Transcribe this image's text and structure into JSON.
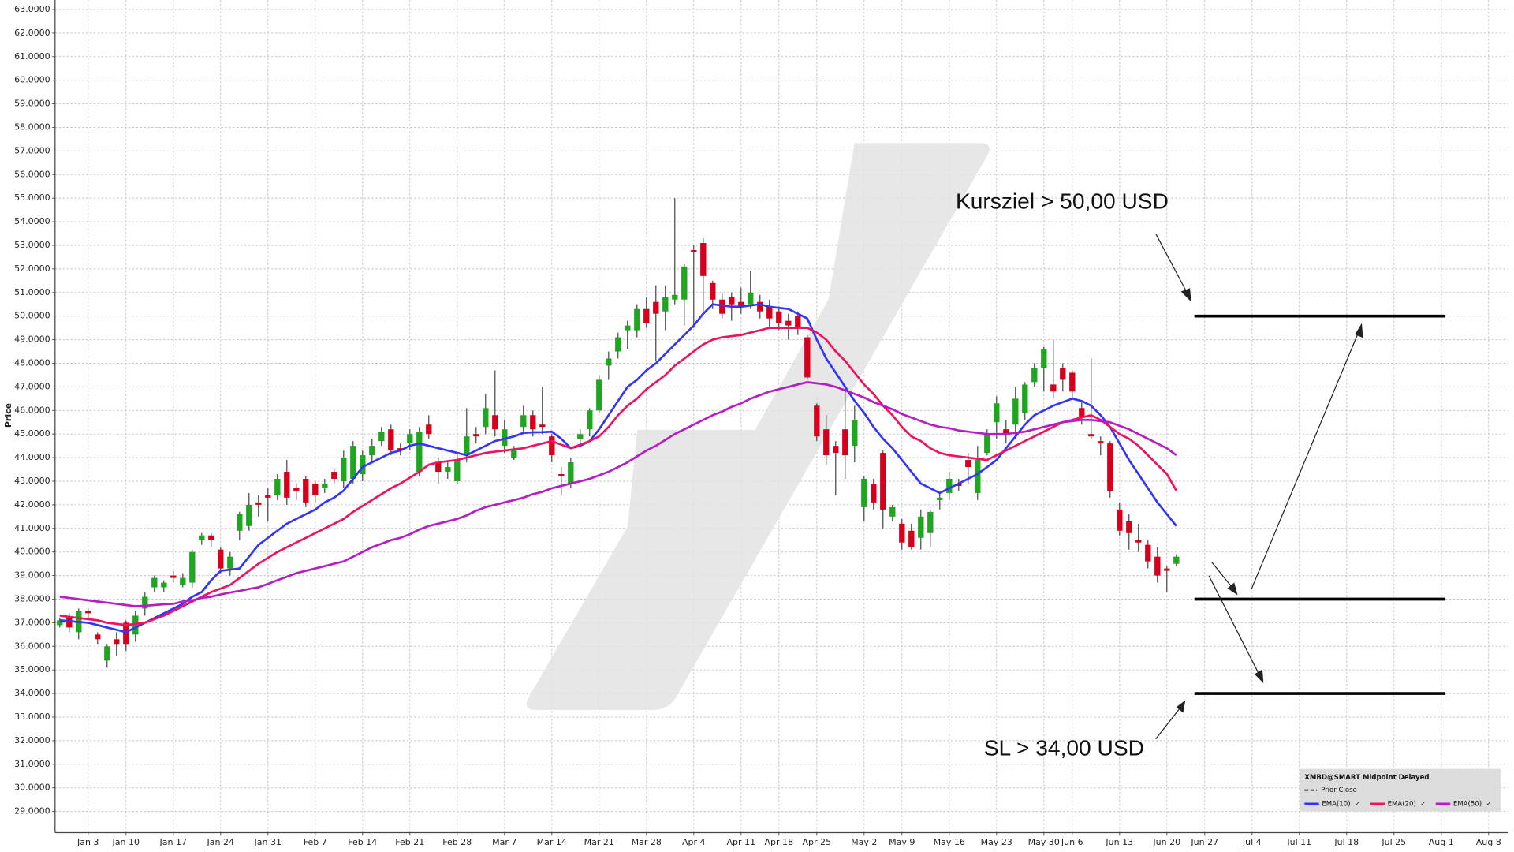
{
  "chart_data": {
    "type": "candlestick",
    "ylabel": "Price",
    "categories": [
      null,
      null,
      null,
      "Jan 3",
      null,
      null,
      null,
      "Jan 10",
      null,
      null,
      null,
      null,
      "Jan 17",
      null,
      null,
      null,
      null,
      "Jan 24",
      null,
      null,
      null,
      null,
      "Jan 31",
      null,
      null,
      null,
      null,
      "Feb 7",
      null,
      null,
      null,
      null,
      "Feb 14",
      null,
      null,
      null,
      null,
      "Feb 21",
      null,
      null,
      null,
      null,
      "Feb 28",
      null,
      null,
      null,
      null,
      "Mar 7",
      null,
      null,
      null,
      null,
      "Mar 14",
      null,
      null,
      null,
      null,
      "Mar 21",
      null,
      null,
      null,
      null,
      "Mar 28",
      null,
      null,
      null,
      null,
      "Apr 4",
      null,
      null,
      null,
      null,
      "Apr 11",
      null,
      null,
      null,
      "Apr 18",
      null,
      null,
      null,
      "Apr 25",
      null,
      null,
      null,
      null,
      "May 2",
      null,
      null,
      null,
      "May 9",
      null,
      null,
      null,
      null,
      "May 16",
      null,
      null,
      null,
      null,
      "May 23",
      null,
      null,
      null,
      null,
      "May 30",
      null,
      null,
      "Jun 6",
      null,
      null,
      null,
      null,
      "Jun 13",
      null,
      null,
      null,
      null,
      "Jun 20",
      null,
      null,
      null,
      "Jun 27",
      null,
      null,
      null,
      null,
      "Jul 4",
      null,
      null,
      null,
      null,
      "Jul 11",
      null,
      null,
      null,
      null,
      "Jul 18",
      null,
      null,
      null,
      null,
      "Jul 25",
      null,
      null,
      null,
      null,
      "Aug 1",
      null,
      null,
      null,
      null,
      "Aug 8"
    ],
    "open": [
      36.9,
      37.2,
      36.6,
      37.5,
      36.5,
      35.4,
      36.3,
      37.0,
      36.5,
      37.6,
      38.5,
      38.5,
      39.0,
      38.6,
      38.7,
      40.5,
      40.7,
      40.1,
      39.3,
      40.9,
      41.1,
      42.1,
      42.4,
      42.4,
      43.4,
      42.7,
      43.1,
      42.9,
      42.7,
      43.4,
      43.0,
      43.1,
      43.3,
      44.1,
      44.7,
      45.2,
      44.4,
      44.6,
      43.4,
      45.4,
      43.8,
      43.4,
      43.0,
      44.1,
      45.0,
      45.3,
      45.8,
      44.5,
      44.0,
      45.3,
      45.8,
      45.4,
      44.9,
      43.3,
      42.9,
      44.8,
      45.2,
      46.0,
      47.9,
      48.5,
      49.4,
      49.4,
      50.3,
      50.6,
      50.2,
      50.7,
      50.7,
      52.8,
      53.1,
      51.4,
      50.7,
      50.8,
      50.6,
      50.5,
      50.6,
      50.4,
      50.2,
      49.8,
      50.0,
      49.1,
      46.2,
      45.2,
      44.5,
      45.2,
      44.5,
      41.9,
      42.9,
      44.2,
      41.5,
      41.2,
      40.9,
      40.6,
      40.8,
      42.2,
      42.5,
      42.9,
      43.9,
      42.5,
      44.2,
      45.5,
      45.2,
      45.4,
      45.9,
      47.2,
      47.8,
      47.1,
      47.8,
      47.6,
      46.1,
      45.0,
      44.7,
      44.6,
      41.8,
      41.3,
      40.5,
      40.3,
      39.8,
      39.3,
      39.5,
      null,
      null,
      null,
      null,
      null,
      null,
      null,
      null,
      null,
      null,
      null,
      null,
      null,
      null,
      null,
      null,
      null,
      null,
      null,
      null,
      null,
      null,
      null,
      null,
      null,
      null,
      null,
      null,
      null,
      null,
      null,
      null,
      null
    ],
    "high": [
      37.2,
      37.4,
      37.6,
      37.6,
      36.6,
      36.1,
      36.6,
      37.1,
      37.5,
      38.3,
      39.0,
      38.8,
      39.2,
      39.1,
      40.1,
      40.8,
      40.8,
      40.2,
      40.0,
      41.7,
      42.5,
      42.4,
      42.7,
      43.3,
      43.9,
      42.9,
      43.2,
      43.0,
      43.1,
      43.5,
      44.3,
      44.7,
      44.3,
      44.8,
      45.3,
      45.4,
      44.6,
      45.2,
      45.3,
      45.8,
      44.0,
      43.8,
      44.2,
      46.1,
      45.3,
      46.7,
      47.7,
      45.6,
      44.5,
      46.2,
      46.0,
      47.0,
      45.0,
      43.6,
      44.0,
      45.2,
      46.1,
      47.5,
      48.5,
      49.3,
      49.8,
      50.5,
      50.8,
      51.3,
      51.3,
      55.0,
      52.2,
      53.0,
      53.3,
      51.5,
      51.0,
      51.0,
      51.2,
      51.9,
      50.9,
      50.7,
      50.4,
      50.1,
      50.2,
      49.2,
      46.3,
      45.8,
      44.7,
      46.8,
      46.2,
      43.2,
      43.1,
      44.3,
      42.0,
      41.4,
      41.2,
      41.8,
      41.8,
      42.5,
      43.4,
      43.1,
      44.2,
      44.5,
      45.2,
      46.6,
      45.6,
      47.0,
      47.2,
      48.0,
      48.7,
      49.0,
      48.0,
      47.7,
      46.4,
      48.2,
      44.9,
      44.7,
      42.1,
      41.6,
      41.2,
      40.5,
      40.2,
      39.4,
      39.9,
      null,
      null,
      null,
      null,
      null,
      null,
      null,
      null,
      null,
      null,
      null,
      null,
      null,
      null,
      null,
      null,
      null,
      null,
      null,
      null,
      null,
      null,
      null,
      null,
      null,
      null,
      null,
      null,
      null,
      null,
      null,
      null,
      null
    ],
    "low": [
      36.8,
      36.6,
      36.3,
      37.2,
      36.1,
      35.1,
      35.6,
      35.8,
      36.2,
      37.3,
      38.3,
      38.3,
      38.7,
      38.5,
      38.5,
      40.3,
      40.2,
      39.1,
      39.0,
      40.5,
      40.9,
      41.5,
      41.3,
      42.2,
      42.0,
      42.2,
      41.9,
      42.1,
      42.5,
      42.9,
      42.7,
      42.9,
      43.0,
      43.8,
      44.5,
      44.1,
      44.1,
      44.3,
      43.2,
      44.8,
      42.9,
      43.1,
      42.9,
      43.8,
      44.6,
      45.0,
      44.9,
      44.2,
      43.9,
      45.0,
      44.9,
      45.0,
      43.8,
      42.4,
      42.7,
      44.6,
      44.9,
      45.9,
      47.3,
      48.2,
      48.6,
      49.1,
      49.5,
      48.1,
      49.4,
      50.5,
      49.6,
      49.5,
      50.2,
      50.3,
      49.9,
      49.8,
      50.1,
      50.3,
      49.9,
      49.5,
      49.4,
      49.0,
      49.2,
      47.3,
      44.7,
      43.7,
      42.4,
      43.1,
      43.8,
      41.3,
      41.8,
      41.0,
      41.3,
      40.1,
      40.1,
      40.1,
      40.2,
      41.8,
      42.2,
      42.6,
      42.9,
      42.2,
      44.1,
      44.8,
      44.6,
      44.8,
      45.6,
      47.0,
      46.8,
      46.5,
      46.8,
      46.5,
      45.4,
      44.8,
      44.1,
      42.3,
      40.7,
      40.1,
      40.0,
      39.3,
      38.7,
      38.3,
      39.4,
      null,
      null,
      null,
      null,
      null,
      null,
      null,
      null,
      null,
      null,
      null,
      null,
      null,
      null,
      null,
      null,
      null,
      null,
      null,
      null,
      null,
      null,
      null,
      null,
      null,
      null,
      null,
      null,
      null,
      null,
      null,
      null,
      null
    ],
    "close": [
      37.1,
      36.8,
      37.5,
      37.4,
      36.3,
      36.0,
      36.1,
      36.1,
      37.3,
      38.1,
      38.9,
      38.7,
      38.9,
      38.9,
      40.0,
      40.7,
      40.5,
      39.3,
      39.8,
      41.6,
      42.0,
      42.0,
      42.3,
      43.1,
      42.3,
      42.6,
      42.1,
      42.4,
      42.9,
      43.1,
      44.0,
      44.5,
      44.1,
      44.5,
      45.1,
      44.3,
      44.3,
      45.0,
      45.1,
      45.0,
      43.4,
      43.6,
      43.9,
      44.9,
      44.9,
      46.1,
      45.2,
      45.2,
      44.3,
      45.8,
      45.2,
      45.3,
      44.1,
      43.2,
      43.8,
      45.0,
      46.0,
      47.3,
      48.2,
      49.1,
      49.6,
      50.3,
      49.7,
      50.1,
      50.8,
      50.9,
      52.1,
      52.7,
      51.7,
      50.7,
      50.1,
      50.5,
      50.4,
      51.0,
      50.2,
      49.9,
      49.7,
      49.6,
      49.5,
      47.4,
      44.9,
      44.1,
      44.2,
      44.1,
      45.6,
      43.1,
      42.1,
      41.8,
      41.9,
      40.4,
      40.2,
      41.5,
      41.7,
      42.3,
      43.1,
      42.8,
      43.6,
      43.9,
      45.0,
      46.3,
      45.0,
      46.5,
      47.1,
      47.8,
      48.6,
      46.8,
      47.3,
      46.8,
      45.7,
      44.9,
      44.6,
      42.6,
      40.9,
      40.8,
      40.4,
      39.6,
      39.0,
      39.2,
      39.8,
      null,
      null,
      null,
      null,
      null,
      null,
      null,
      null,
      null,
      null,
      null,
      null,
      null,
      null,
      null,
      null,
      null,
      null,
      null,
      null,
      null,
      null,
      null,
      null,
      null,
      null,
      null,
      null,
      null,
      null,
      null,
      null,
      null
    ],
    "up_color": "#1fa51f",
    "down_color": "#d4001c",
    "series": [
      {
        "name": "EMA(10)",
        "color": "#3535f5",
        "values": [
          37.1,
          37.07,
          37.03,
          37.0,
          36.9,
          36.8,
          36.7,
          36.6,
          36.8,
          37.0,
          37.2,
          37.4,
          37.6,
          37.8,
          38.1,
          38.3,
          38.8,
          39.2,
          39.25,
          39.3,
          39.8,
          40.3,
          40.6,
          40.9,
          41.2,
          41.4,
          41.6,
          41.8,
          42.1,
          42.3,
          42.6,
          43.1,
          43.6,
          43.8,
          44.0,
          44.2,
          44.3,
          44.5,
          44.6,
          44.5,
          44.4,
          44.3,
          44.2,
          44.1,
          44.3,
          44.5,
          44.7,
          44.8,
          44.9,
          45.05,
          45.07,
          45.08,
          45.1,
          44.8,
          44.4,
          44.5,
          44.7,
          45.2,
          45.8,
          46.4,
          47.0,
          47.3,
          47.7,
          48.0,
          48.4,
          48.8,
          49.2,
          49.6,
          50.1,
          50.5,
          50.45,
          50.4,
          50.4,
          50.45,
          50.5,
          50.4,
          50.35,
          50.3,
          50.1,
          49.9,
          49.0,
          48.2,
          47.6,
          47.0,
          46.4,
          45.9,
          45.3,
          44.8,
          44.4,
          43.9,
          43.4,
          42.9,
          42.7,
          42.5,
          42.7,
          42.9,
          43.1,
          43.3,
          43.6,
          43.9,
          44.4,
          44.9,
          45.4,
          45.8,
          46.0,
          46.2,
          46.35,
          46.5,
          46.4,
          46.2,
          45.8,
          45.3,
          44.6,
          43.9,
          43.3,
          42.7,
          42.1,
          41.6,
          41.1,
          null,
          null,
          null,
          null,
          null,
          null,
          null,
          null,
          null,
          null,
          null,
          null,
          null,
          null,
          null,
          null,
          null,
          null,
          null,
          null,
          null,
          null,
          null,
          null,
          null,
          null,
          null,
          null,
          null,
          null,
          null,
          null,
          null
        ]
      },
      {
        "name": "EMA(20)",
        "color": "#ec1460",
        "values": [
          37.3,
          37.25,
          37.2,
          37.15,
          37.1,
          37.0,
          36.95,
          36.9,
          36.95,
          37.0,
          37.15,
          37.3,
          37.5,
          37.7,
          37.9,
          38.1,
          38.3,
          38.45,
          38.6,
          38.9,
          39.2,
          39.5,
          39.75,
          40.0,
          40.2,
          40.4,
          40.6,
          40.8,
          41.0,
          41.2,
          41.4,
          41.7,
          41.95,
          42.2,
          42.45,
          42.7,
          42.9,
          43.15,
          43.4,
          43.7,
          43.8,
          43.85,
          43.9,
          44.0,
          44.1,
          44.2,
          44.25,
          44.3,
          44.35,
          44.4,
          44.5,
          44.6,
          44.7,
          44.55,
          44.4,
          44.55,
          44.7,
          44.9,
          45.3,
          45.8,
          46.2,
          46.5,
          46.9,
          47.2,
          47.5,
          47.9,
          48.2,
          48.5,
          48.8,
          49.0,
          49.1,
          49.15,
          49.2,
          49.3,
          49.4,
          49.5,
          49.5,
          49.5,
          49.5,
          49.5,
          49.3,
          49.0,
          48.5,
          48.1,
          47.6,
          47.1,
          46.7,
          46.2,
          45.8,
          45.3,
          44.9,
          44.7,
          44.4,
          44.2,
          44.1,
          44.05,
          44.0,
          43.95,
          43.9,
          44.1,
          44.3,
          44.5,
          44.7,
          44.9,
          45.1,
          45.3,
          45.5,
          45.6,
          45.7,
          45.8,
          45.6,
          45.3,
          45.0,
          44.8,
          44.5,
          44.1,
          43.7,
          43.3,
          42.6,
          null,
          null,
          null,
          null,
          null,
          null,
          null,
          null,
          null,
          null,
          null,
          null,
          null,
          null,
          null,
          null,
          null,
          null,
          null,
          null,
          null,
          null,
          null,
          null,
          null,
          null,
          null,
          null,
          null,
          null,
          null,
          null,
          null
        ]
      },
      {
        "name": "EMA(50)",
        "color": "#b41ec4",
        "values": [
          38.1,
          38.05,
          38.0,
          37.95,
          37.9,
          37.85,
          37.8,
          37.75,
          37.7,
          37.72,
          37.75,
          37.78,
          37.8,
          37.9,
          37.95,
          38.05,
          38.1,
          38.2,
          38.28,
          38.35,
          38.43,
          38.5,
          38.65,
          38.8,
          38.95,
          39.1,
          39.2,
          39.3,
          39.4,
          39.5,
          39.6,
          39.8,
          40.0,
          40.2,
          40.35,
          40.5,
          40.6,
          40.75,
          40.95,
          41.1,
          41.2,
          41.3,
          41.4,
          41.55,
          41.75,
          41.9,
          42.0,
          42.1,
          42.2,
          42.3,
          42.45,
          42.55,
          42.7,
          42.8,
          42.9,
          43.0,
          43.1,
          43.25,
          43.4,
          43.6,
          43.8,
          44.05,
          44.3,
          44.5,
          44.75,
          45.0,
          45.2,
          45.4,
          45.6,
          45.8,
          45.95,
          46.15,
          46.3,
          46.5,
          46.65,
          46.8,
          46.9,
          47.0,
          47.1,
          47.2,
          47.15,
          47.1,
          47.0,
          46.85,
          46.7,
          46.55,
          46.35,
          46.2,
          46.05,
          45.85,
          45.7,
          45.55,
          45.4,
          45.3,
          45.25,
          45.15,
          45.1,
          45.05,
          45.0,
          45.0,
          45.0,
          45.05,
          45.1,
          45.2,
          45.3,
          45.4,
          45.5,
          45.55,
          45.6,
          45.6,
          45.55,
          45.5,
          45.35,
          45.2,
          45.0,
          44.8,
          44.6,
          44.4,
          44.1,
          null,
          null,
          null,
          null,
          null,
          null,
          null,
          null,
          null,
          null,
          null,
          null,
          null,
          null,
          null,
          null,
          null,
          null,
          null,
          null,
          null,
          null,
          null,
          null,
          null,
          null,
          null,
          null,
          null,
          null,
          null,
          null,
          null
        ]
      }
    ],
    "ylim": [
      28.1,
      63.4
    ],
    "yticks": [
      {
        "value": 29,
        "label": "29.0000"
      },
      {
        "value": 30,
        "label": "30.0000"
      },
      {
        "value": 31,
        "label": "31.0000"
      },
      {
        "value": 32,
        "label": "32.0000"
      },
      {
        "value": 33,
        "label": "33.0000"
      },
      {
        "value": 34,
        "label": "34.0000"
      },
      {
        "value": 35,
        "label": "35.0000"
      },
      {
        "value": 36,
        "label": "36.0000"
      },
      {
        "value": 37,
        "label": "37.0000"
      },
      {
        "value": 38,
        "label": "38.0000"
      },
      {
        "value": 39,
        "label": "39.0000"
      },
      {
        "value": 40,
        "label": "40.0000"
      },
      {
        "value": 41,
        "label": "41.0000"
      },
      {
        "value": 42,
        "label": "42.0000"
      },
      {
        "value": 43,
        "label": "43.0000"
      },
      {
        "value": 44,
        "label": "44.0000"
      },
      {
        "value": 45,
        "label": "45.0000"
      },
      {
        "value": 46,
        "label": "46.0000"
      },
      {
        "value": 47,
        "label": "47.0000"
      },
      {
        "value": 48,
        "label": "48.0000"
      },
      {
        "value": 49,
        "label": "49.0000"
      },
      {
        "value": 50,
        "label": "50.0000"
      },
      {
        "value": 51,
        "label": "51.0000"
      },
      {
        "value": 52,
        "label": "52.0000"
      },
      {
        "value": 53,
        "label": "53.0000"
      },
      {
        "value": 54,
        "label": "54.0000"
      },
      {
        "value": 55,
        "label": "55.0000"
      },
      {
        "value": 56,
        "label": "56.0000"
      },
      {
        "value": 57,
        "label": "57.0000"
      },
      {
        "value": 58,
        "label": "58.0000"
      },
      {
        "value": 59,
        "label": "59.0000"
      },
      {
        "value": 60,
        "label": "60.0000"
      },
      {
        "value": 61,
        "label": "61.0000"
      },
      {
        "value": 62,
        "label": "62.0000"
      },
      {
        "value": 63,
        "label": "63.0000"
      }
    ],
    "grid": true,
    "levels": [
      50,
      38,
      34
    ],
    "level_color": "#000000",
    "annotations": [
      "Kursziel > 50,00 USD",
      "SL > 34,00 USD"
    ],
    "legend_title": "XMBD@SMART Midpoint Delayed",
    "prior_close_label": "Prior Close",
    "legend_corner": "lower right"
  }
}
